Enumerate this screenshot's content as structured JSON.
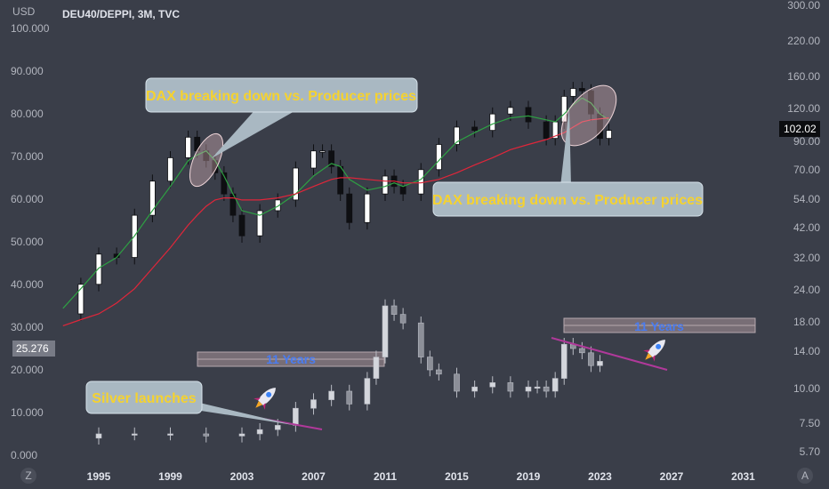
{
  "header": {
    "currency": "USD",
    "symbol": "DEU40/DEPPI, 3M, TVC"
  },
  "left_axis": {
    "ticks": [
      "100.000",
      "90.000",
      "80.000",
      "70.000",
      "60.000",
      "50.000",
      "40.000",
      "30.000",
      "20.000",
      "10.000",
      "0.000"
    ],
    "current": "25.276"
  },
  "right_axis": {
    "ticks": [
      "300.00",
      "220.00",
      "160.00",
      "120.00",
      "90.00",
      "70.00",
      "54.00",
      "42.00",
      "32.00",
      "24.00",
      "18.00",
      "14.00",
      "10.00",
      "7.50",
      "5.70"
    ],
    "current": "102.02"
  },
  "x_axis": {
    "ticks": [
      "1995",
      "1999",
      "2003",
      "2007",
      "2011",
      "2015",
      "2019",
      "2023",
      "2027",
      "2031"
    ],
    "left_button": "Z",
    "right_button": "A"
  },
  "annotations": {
    "callout_1": "DAX breaking down vs. Producer prices",
    "callout_2": "DAX breaking down vs. Producer prices",
    "callout_3": "Silver launches",
    "years_1": "11 Years",
    "years_2": "11 Years",
    "rocket_icon": "rocket-icon"
  },
  "colors": {
    "background": "#3a3e49",
    "up": "#ffffff",
    "down": "#0e0f12",
    "ma_fast": "#2ea043",
    "ma_slow": "#e0263a",
    "silver": "#c9cbd1",
    "trendline": "#b0399a",
    "callout": "#f5d22f",
    "years": "#4a7cf0"
  },
  "chart_data": [
    {
      "type": "line",
      "title": "DEU40/DEPPI, 3M, TVC",
      "yaxis": "right (log)",
      "ylim": [
        5.7,
        300
      ],
      "x": [
        1993.0,
        1994.0,
        1995.0,
        1996.0,
        1997.0,
        1998.0,
        1999.0,
        2000.0,
        2000.5,
        2001.0,
        2001.5,
        2002.0,
        2002.5,
        2003.0,
        2004.0,
        2005.0,
        2006.0,
        2007.0,
        2007.5,
        2008.0,
        2008.5,
        2009.0,
        2010.0,
        2011.0,
        2011.5,
        2012.0,
        2013.0,
        2014.0,
        2015.0,
        2016.0,
        2017.0,
        2018.0,
        2019.0,
        2020.0,
        2020.5,
        2021.0,
        2021.5,
        2022.0,
        2022.5,
        2023.0,
        2023.5
      ],
      "values": [
        20,
        26,
        34,
        33,
        48,
        65,
        80,
        96,
        85,
        78,
        70,
        58,
        48,
        40,
        50,
        55,
        73,
        85,
        85,
        74,
        58,
        45,
        58,
        68,
        62,
        58,
        72,
        90,
        105,
        102,
        118,
        125,
        110,
        95,
        110,
        138,
        148,
        145,
        118,
        95,
        102
      ],
      "series": [
        {
          "name": "",
          "color": "#2ea043",
          "values": [
            21,
            25,
            30,
            33,
            40,
            50,
            62,
            78,
            82,
            85,
            78,
            68,
            58,
            50,
            48,
            52,
            58,
            68,
            72,
            76,
            74,
            66,
            60,
            62,
            64,
            62,
            66,
            78,
            92,
            100,
            108,
            114,
            116,
            112,
            110,
            118,
            128,
            136,
            130,
            118,
            112
          ]
        },
        {
          "name": "",
          "color": "#e0263a",
          "values": [
            18,
            19,
            20,
            22,
            25,
            30,
            36,
            44,
            48,
            52,
            55,
            56,
            56,
            55,
            55,
            56,
            58,
            62,
            64,
            66,
            67,
            67,
            66,
            65,
            65,
            64,
            64,
            66,
            70,
            75,
            80,
            86,
            90,
            94,
            97,
            100,
            105,
            110,
            112,
            113,
            114
          ]
        }
      ]
    },
    {
      "type": "line",
      "yaxis": "left",
      "ylim": [
        0,
        100
      ],
      "x": [
        1993.0,
        1995.0,
        1997.0,
        1999.0,
        2001.0,
        2003.0,
        2004.0,
        2005.0,
        2006.0,
        2007.0,
        2008.0,
        2009.0,
        2010.0,
        2010.5,
        2011.0,
        2011.5,
        2012.0,
        2013.0,
        2013.5,
        2014.0,
        2015.0,
        2016.0,
        2017.0,
        2018.0,
        2019.0,
        2019.5,
        2020.0,
        2020.5,
        2021.0,
        2021.5,
        2022.0,
        2022.5,
        2023.0
      ],
      "values": [
        4,
        5,
        5,
        5,
        4.5,
        5,
        6,
        7,
        11,
        13,
        15,
        12,
        18,
        23,
        35,
        33,
        31,
        23,
        20,
        19,
        15,
        16,
        17,
        15,
        16,
        16,
        15,
        18,
        26,
        25,
        24,
        21,
        22
      ]
    }
  ]
}
